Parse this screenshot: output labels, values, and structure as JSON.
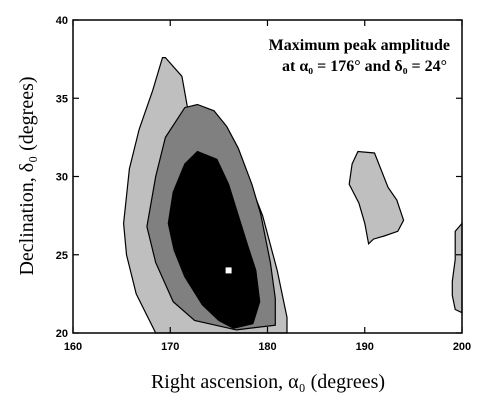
{
  "chart_data": {
    "type": "heatmap",
    "title": "",
    "xlabel": "Right ascension, α₀ (degrees)",
    "ylabel": "Declination, δ₀ (degrees)",
    "xlim": [
      160,
      200
    ],
    "ylim": [
      20,
      40
    ],
    "xticks": [
      160,
      170,
      180,
      190,
      200
    ],
    "yticks": [
      20,
      25,
      30,
      35,
      40
    ],
    "annotation": {
      "line1": "Maximum peak amplitude",
      "line2": "at α₀ = 176° and δ₀ = 24°"
    },
    "peak": {
      "x": 176,
      "y": 24
    },
    "colors": {
      "level1": "#bfbfbf",
      "level2": "#808080",
      "level3": "#000000",
      "peak": "#ffffff"
    },
    "contours": [
      {
        "level": 1,
        "points": [
          [
            169.5,
            37.6
          ],
          [
            171.2,
            36.4
          ],
          [
            171.8,
            34.3
          ],
          [
            173,
            33.5
          ],
          [
            175.2,
            32.5
          ],
          [
            177.8,
            30.2
          ],
          [
            179.5,
            27.5
          ],
          [
            181,
            24
          ],
          [
            182,
            21
          ],
          [
            182,
            20
          ],
          [
            168.5,
            20
          ],
          [
            166.5,
            22.5
          ],
          [
            165.5,
            25
          ],
          [
            165.2,
            27
          ],
          [
            165.8,
            30.5
          ],
          [
            166.8,
            33
          ],
          [
            168.2,
            35.5
          ],
          [
            169.2,
            37.6
          ]
        ]
      },
      {
        "level": 1,
        "points": [
          [
            188.7,
            30.8
          ],
          [
            189.3,
            31.6
          ],
          [
            191,
            31.5
          ],
          [
            192.4,
            29.3
          ],
          [
            193.3,
            28.5
          ],
          [
            194,
            27.2
          ],
          [
            193.4,
            26.5
          ],
          [
            192,
            26.2
          ],
          [
            190.9,
            26
          ],
          [
            190.4,
            25.7
          ],
          [
            190,
            27
          ],
          [
            189.4,
            28.3
          ],
          [
            188.4,
            29.5
          ]
        ]
      },
      {
        "level": 1,
        "points": [
          [
            200,
            27
          ],
          [
            199.3,
            26.5
          ],
          [
            199.3,
            24.7
          ],
          [
            199,
            23.3
          ],
          [
            199,
            22.4
          ],
          [
            199.3,
            21.5
          ],
          [
            200,
            21.3
          ]
        ]
      },
      {
        "level": 2,
        "points": [
          [
            172.8,
            34.6
          ],
          [
            174.5,
            34.2
          ],
          [
            175.8,
            33.2
          ],
          [
            177,
            31.8
          ],
          [
            178.4,
            29.5
          ],
          [
            179.3,
            27.6
          ],
          [
            180.3,
            24.5
          ],
          [
            180.8,
            22.2
          ],
          [
            180.8,
            20.5
          ],
          [
            176.8,
            20.2
          ],
          [
            172.5,
            20.8
          ],
          [
            170.3,
            22
          ],
          [
            168.5,
            24.5
          ],
          [
            167.6,
            26.8
          ],
          [
            168.5,
            30
          ],
          [
            169.5,
            32.5
          ],
          [
            171.5,
            34.4
          ]
        ]
      },
      {
        "level": 3,
        "points": [
          [
            172.8,
            31.6
          ],
          [
            174.8,
            31.1
          ],
          [
            176,
            29.5
          ],
          [
            177,
            27.5
          ],
          [
            178,
            25.5
          ],
          [
            178.8,
            24
          ],
          [
            179.2,
            22
          ],
          [
            178.5,
            20.6
          ],
          [
            176.5,
            20.3
          ],
          [
            175,
            20.8
          ],
          [
            173.3,
            21.8
          ],
          [
            171.5,
            23.6
          ],
          [
            170.4,
            25.3
          ],
          [
            169.8,
            27
          ],
          [
            170.3,
            29
          ],
          [
            171.5,
            30.8
          ]
        ]
      }
    ]
  }
}
